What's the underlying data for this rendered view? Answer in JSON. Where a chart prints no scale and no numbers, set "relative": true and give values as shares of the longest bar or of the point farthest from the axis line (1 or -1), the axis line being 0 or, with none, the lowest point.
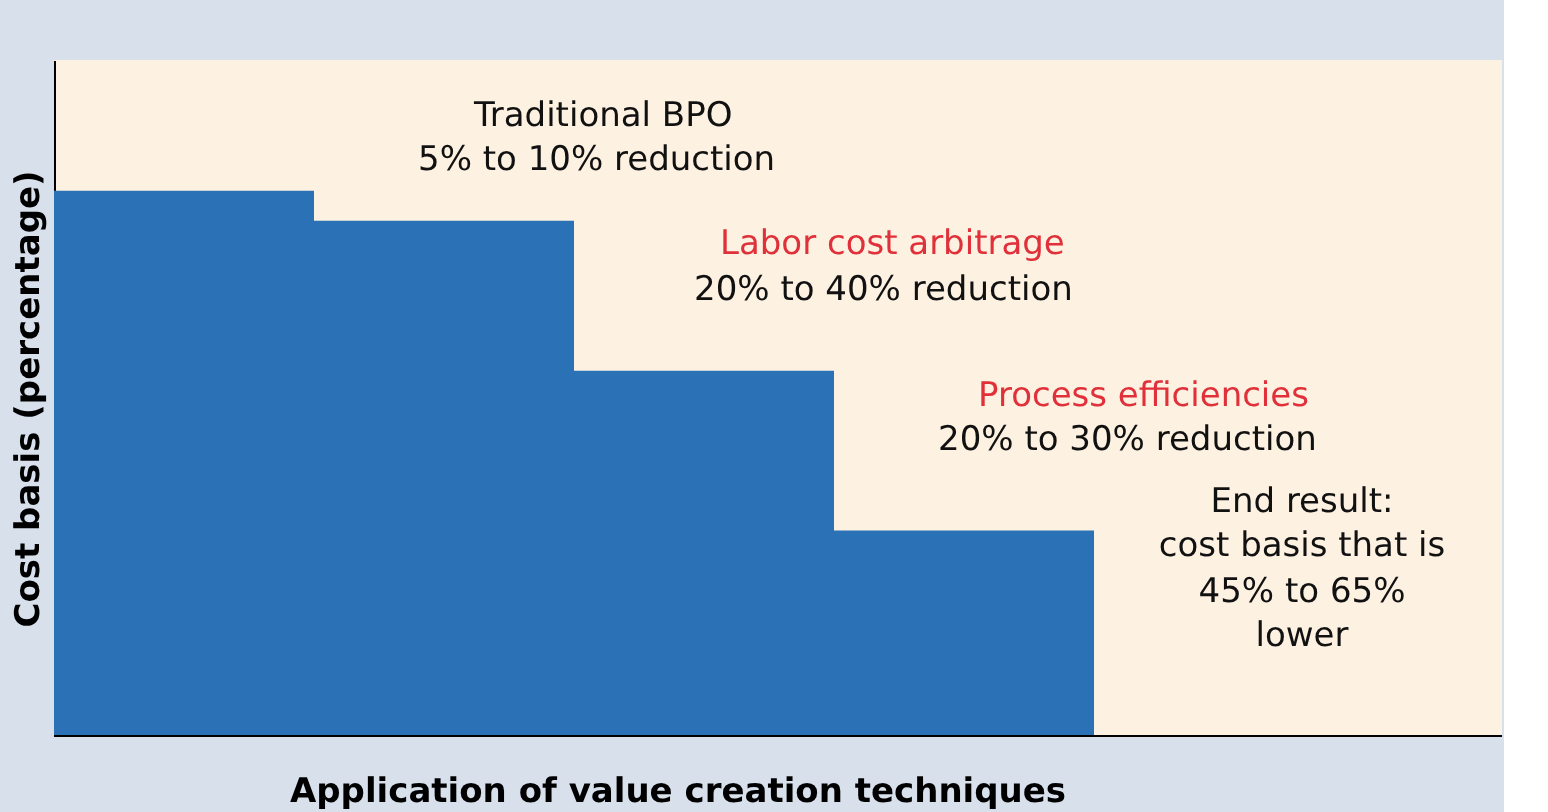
{
  "chart_data": {
    "type": "bar",
    "relative": true,
    "xlabel": "Application of value creation techniques",
    "ylabel": "Cost basis (percentage)",
    "categories": [
      null,
      null,
      null,
      null
    ],
    "values": [
      1,
      0.945,
      0.67,
      0.377
    ],
    "color": "#2a72b5",
    "annotations": [
      "Traditional BPO",
      "5% to 10% reduction",
      "Labor cost arbitrage",
      "20% to 40% reduction",
      "Process efficiencies",
      "20% to 30% reduction",
      "End result:",
      "cost basis that is",
      "45% to 65%",
      "lower"
    ]
  }
}
